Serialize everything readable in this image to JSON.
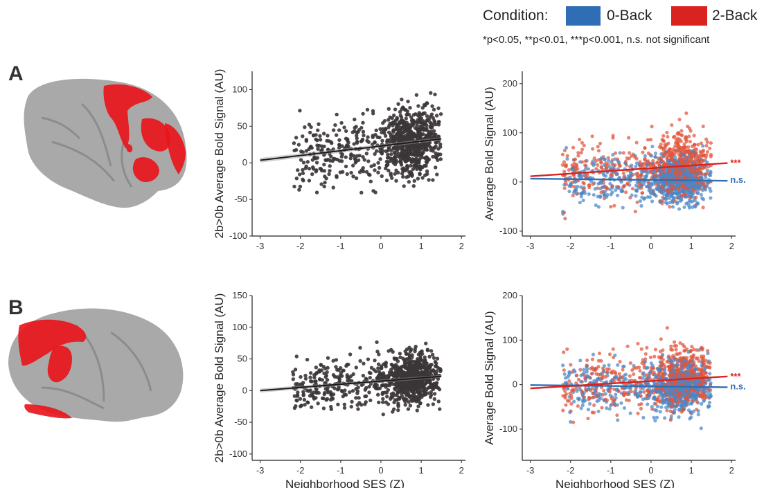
{
  "legend": {
    "title": "Condition:",
    "items": [
      {
        "label": "0-Back",
        "color": "#2f6db5"
      },
      {
        "label": "2-Back",
        "color": "#d9231f"
      }
    ],
    "significance_note": "*p<0.05, **p<0.01, ***p<0.001, n.s. not significant"
  },
  "panels": [
    {
      "letter": "A"
    },
    {
      "letter": "B"
    }
  ],
  "colors": {
    "points_single": "#3b3536",
    "fit_single": "#1a1a1a",
    "zero_back": "#4a86c8",
    "two_back": "#e0553a",
    "zero_back_line": "#2f6db5",
    "two_back_line": "#d9231f",
    "brain": "#a9a9a9",
    "activation": "#e8161b"
  },
  "chart_data": [
    {
      "id": "A-difference",
      "type": "scatter",
      "xlabel": "",
      "ylabel": "2b>0b Average Bold Signal (AU)",
      "xlim": [
        -3.2,
        2.1
      ],
      "ylim": [
        -100,
        125
      ],
      "xticks": [
        -3,
        -2,
        -1,
        0,
        1,
        2
      ],
      "yticks": [
        -100,
        -50,
        0,
        50,
        100
      ],
      "n_points": 900,
      "series": [
        {
          "fit": {
            "intercept": 23,
            "slope": 6.5
          },
          "sd": 23
        }
      ]
    },
    {
      "id": "A-conditions",
      "type": "scatter",
      "xlabel": "",
      "ylabel": "Average Bold Signal (AU)",
      "xlim": [
        -3.2,
        2.1
      ],
      "ylim": [
        -110,
        225
      ],
      "xticks": [
        -3,
        -2,
        -1,
        0,
        1,
        2
      ],
      "yticks": [
        -100,
        0,
        100,
        200
      ],
      "n_points": 800,
      "series": [
        {
          "name": "0-Back",
          "fit": {
            "intercept": 4,
            "slope": -0.9
          },
          "sd": 24,
          "annotation": "n.s."
        },
        {
          "name": "2-Back",
          "fit": {
            "intercept": 28,
            "slope": 5.5
          },
          "sd": 32,
          "annotation": "***"
        }
      ]
    },
    {
      "id": "B-difference",
      "type": "scatter",
      "xlabel": "Neighborhood SES (Z)",
      "ylabel": "2b>0b Average Bold Signal (AU)",
      "xlim": [
        -3.2,
        2.1
      ],
      "ylim": [
        -110,
        150
      ],
      "xticks": [
        -3,
        -2,
        -1,
        0,
        1,
        2
      ],
      "yticks": [
        -100,
        -50,
        0,
        50,
        100,
        150
      ],
      "n_points": 900,
      "series": [
        {
          "fit": {
            "intercept": 15,
            "slope": 5
          },
          "sd": 20
        }
      ]
    },
    {
      "id": "B-conditions",
      "type": "scatter",
      "xlabel": "Neighborhood SES (Z)",
      "ylabel": "Average Bold Signal (AU)",
      "xlim": [
        -3.2,
        2.1
      ],
      "ylim": [
        -170,
        200
      ],
      "xticks": [
        -3,
        -2,
        -1,
        0,
        1,
        2
      ],
      "yticks": [
        -100,
        0,
        100,
        200
      ],
      "n_points": 800,
      "series": [
        {
          "name": "0-Back",
          "fit": {
            "intercept": -4,
            "slope": -1
          },
          "sd": 28,
          "annotation": "n.s."
        },
        {
          "name": "2-Back",
          "fit": {
            "intercept": 8,
            "slope": 5.5
          },
          "sd": 33,
          "annotation": "***"
        }
      ]
    }
  ]
}
